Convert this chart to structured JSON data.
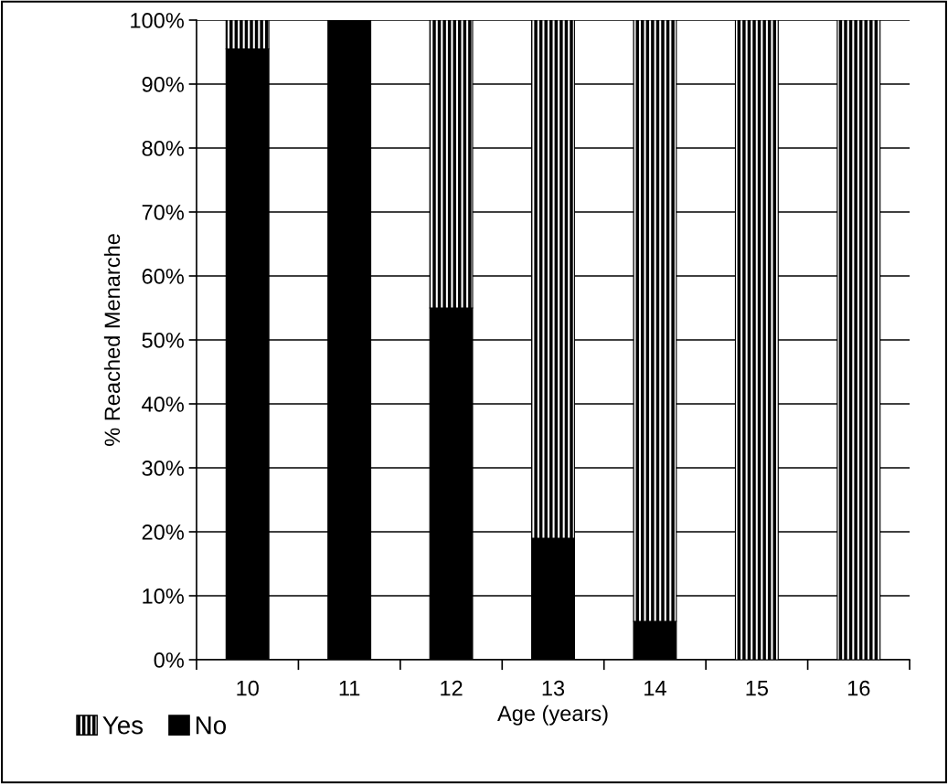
{
  "chart_data": {
    "type": "bar",
    "stacked": true,
    "xlabel": "Age (years)",
    "ylabel": "% Reached Menarche",
    "categories": [
      "10",
      "11",
      "12",
      "13",
      "14",
      "15",
      "16"
    ],
    "series": [
      {
        "name": "No",
        "color": "#000000",
        "values": [
          95.5,
          100,
          55,
          19,
          6,
          0,
          0
        ]
      },
      {
        "name": "Yes",
        "color": "#000000",
        "values": [
          4.5,
          0,
          45,
          81,
          94,
          100,
          100
        ]
      }
    ],
    "ylim": [
      0,
      100
    ],
    "yticks": [
      {
        "value": 0,
        "label": "0%"
      },
      {
        "value": 10,
        "label": "10%"
      },
      {
        "value": 20,
        "label": "20%"
      },
      {
        "value": 30,
        "label": "30%"
      },
      {
        "value": 40,
        "label": "40%"
      },
      {
        "value": 50,
        "label": "50%"
      },
      {
        "value": 60,
        "label": "60%"
      },
      {
        "value": 70,
        "label": "70%"
      },
      {
        "value": 80,
        "label": "80%"
      },
      {
        "value": 90,
        "label": "90%"
      },
      {
        "value": 100,
        "label": "100%"
      }
    ],
    "grid": "y",
    "legend": "bottom left"
  }
}
